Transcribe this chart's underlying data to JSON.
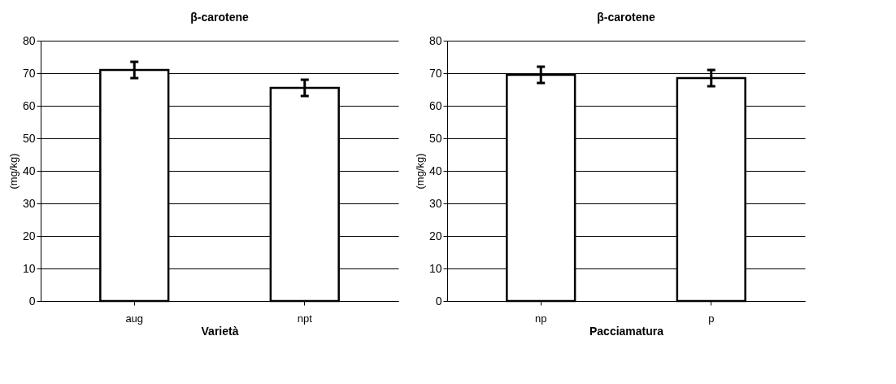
{
  "chart_data": [
    {
      "type": "bar",
      "title": "β-carotene",
      "xlabel": "Varietà",
      "ylabel": "(mg/kg)",
      "categories": [
        "aug",
        "npt"
      ],
      "series": [
        {
          "color": "#ffffff",
          "values": [
            71,
            65.5
          ],
          "errors": [
            2.5,
            2.5
          ]
        }
      ],
      "ylim": [
        0,
        80
      ],
      "yticks": [
        0,
        10,
        20,
        30,
        40,
        50,
        60,
        70,
        80
      ],
      "grid": "y",
      "legend": false
    },
    {
      "type": "bar",
      "title": "β-carotene",
      "xlabel": "Pacciamatura",
      "ylabel": "(mg/kg)",
      "categories": [
        "np",
        "p"
      ],
      "series": [
        {
          "color": "#ffffff",
          "values": [
            69.5,
            68.5
          ],
          "errors": [
            2.5,
            2.5
          ]
        }
      ],
      "ylim": [
        0,
        80
      ],
      "yticks": [
        0,
        10,
        20,
        30,
        40,
        50,
        60,
        70,
        80
      ],
      "grid": "y",
      "legend": false
    }
  ]
}
